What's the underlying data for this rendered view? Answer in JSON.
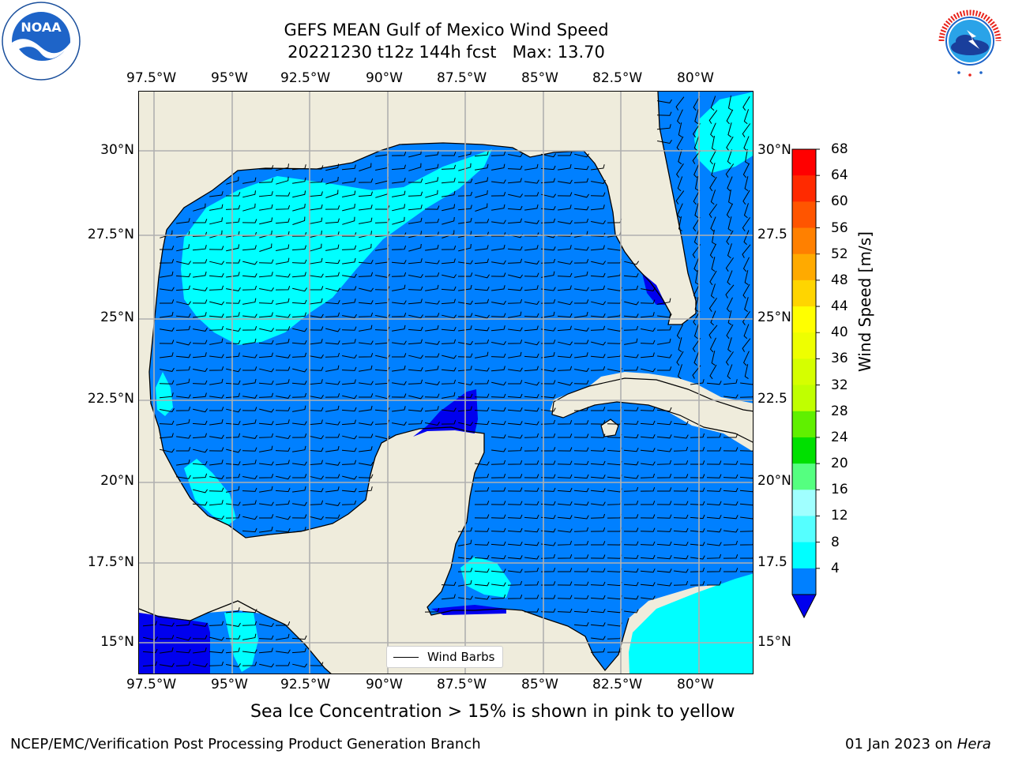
{
  "title": {
    "line1": "GEFS MEAN Gulf of Mexico Wind Speed",
    "line2": "20221230 t12z 144h fcst   Max: 13.70"
  },
  "logos": {
    "noaa_text": "NOAA",
    "noaa_ring_text": "NATIONAL OCEANIC AND ATMOSPHERIC ADMINISTRATION · U.S. DEPARTMENT OF COMMERCE",
    "nws_ring_text": "NATIONAL WEATHER SERVICE"
  },
  "map": {
    "lon_ticks": [
      "97.5°W",
      "95°W",
      "92.5°W",
      "90°W",
      "87.5°W",
      "85°W",
      "82.5°W",
      "80°W"
    ],
    "lat_ticks_left": [
      "30°N",
      "27.5°N",
      "25°N",
      "22.5°N",
      "20°N",
      "17.5°N",
      "15°N"
    ],
    "lat_ticks_right": [
      "30°N",
      "27.5",
      "25°N",
      "22.5",
      "20°N",
      "17.5",
      "15°N"
    ],
    "legend_label": "Wind Barbs",
    "colors": {
      "land": "#efecdc",
      "ocean_4_8": "#0080ff",
      "ocean_8_12": "#00ffff",
      "ocean_lt4": "#0000ee",
      "grid": "#b0b0b0"
    }
  },
  "colorbar": {
    "label": "Wind Speed [m/s]",
    "tick_labels": [
      "68",
      "64",
      "60",
      "56",
      "52",
      "48",
      "44",
      "40",
      "36",
      "32",
      "28",
      "24",
      "20",
      "16",
      "12",
      "8",
      "4"
    ],
    "colors_top_to_bottom": [
      "#ff0000",
      "#ff2a00",
      "#ff5500",
      "#ff8000",
      "#ffaa00",
      "#ffd500",
      "#ffff00",
      "#eeff00",
      "#d5ff00",
      "#c0ff00",
      "#60f000",
      "#00e000",
      "#55ff80",
      "#a0ffff",
      "#55ffff",
      "#00ffff",
      "#0080ff"
    ],
    "extend_color": "#0000ee"
  },
  "caption": "Sea Ice Concentration > 15% is shown in pink to yellow",
  "footer": {
    "left": "NCEP/EMC/Verification Post Processing Product Generation Branch",
    "date": "01 Jan 2023 on ",
    "machine": "Hera"
  }
}
